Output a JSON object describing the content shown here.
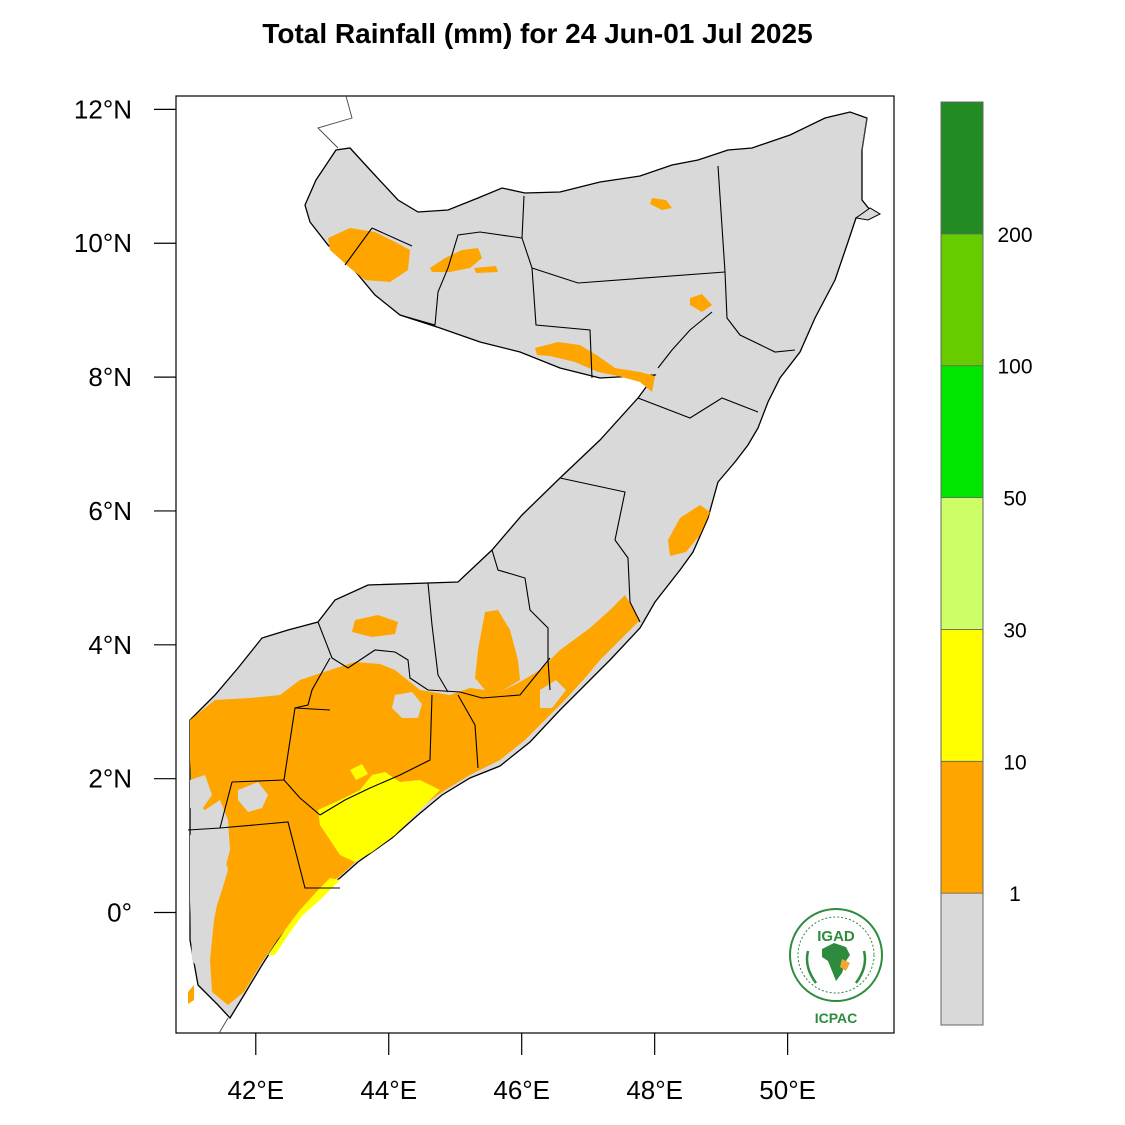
{
  "title": "Total Rainfall (mm) for 24 Jun-01 Jul 2025",
  "axes": {
    "lat_ticks": [
      {
        "value": 12,
        "label": "12°N"
      },
      {
        "value": 10,
        "label": "10°N"
      },
      {
        "value": 8,
        "label": "8°N"
      },
      {
        "value": 6,
        "label": "6°N"
      },
      {
        "value": 4,
        "label": "4°N"
      },
      {
        "value": 2,
        "label": "2°N"
      },
      {
        "value": 0,
        "label": "0°"
      }
    ],
    "lon_ticks": [
      {
        "value": 42,
        "label": "42°E"
      },
      {
        "value": 44,
        "label": "44°E"
      },
      {
        "value": 46,
        "label": "46°E"
      },
      {
        "value": 48,
        "label": "48°E"
      },
      {
        "value": 50,
        "label": "50°E"
      }
    ],
    "lon_range": [
      40.8,
      51.6
    ],
    "lat_range": [
      -1.8,
      12.2
    ]
  },
  "legend": {
    "bins": [
      {
        "color": "#d9d9d9",
        "label": "1"
      },
      {
        "color": "#ffa500",
        "label": "10"
      },
      {
        "color": "#ffff00",
        "label": "30"
      },
      {
        "color": "#ccff66",
        "label": "50"
      },
      {
        "color": "#00e600",
        "label": "100"
      },
      {
        "color": "#66cc00",
        "label": "200"
      },
      {
        "color": "#228b22",
        "label": ""
      }
    ]
  },
  "colors": {
    "no_rain": "#d9d9d9",
    "rain_1_10": "#ffa500",
    "rain_10_30": "#ffff00",
    "border": "#000000"
  },
  "logo": {
    "top_text": "IGAD",
    "bottom_text": "ICPAC",
    "icon": "igad-africa-wreath-icon"
  }
}
